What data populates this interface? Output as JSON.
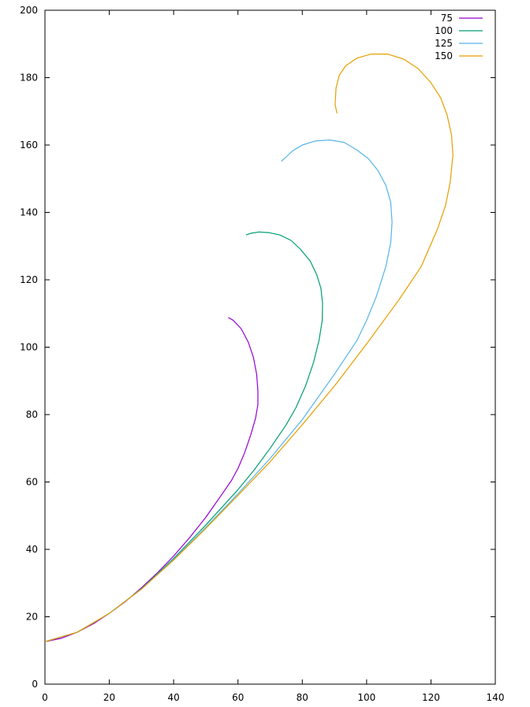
{
  "chart_data": {
    "type": "line",
    "title": "",
    "xlabel": "",
    "ylabel": "",
    "xlim": [
      0,
      140
    ],
    "ylim": [
      0,
      200
    ],
    "x_ticks": [
      0,
      20,
      40,
      60,
      80,
      100,
      120,
      140
    ],
    "y_ticks": [
      0,
      20,
      40,
      60,
      80,
      100,
      120,
      140,
      160,
      180,
      200
    ],
    "grid": false,
    "legend_position": "top-right",
    "series": [
      {
        "name": "75",
        "color": "#9400d3",
        "points": [
          [
            0,
            12.6
          ],
          [
            5,
            13.6
          ],
          [
            10,
            15.4
          ],
          [
            15,
            17.9
          ],
          [
            20,
            21.0
          ],
          [
            25,
            24.5
          ],
          [
            30,
            28.6
          ],
          [
            35,
            33.1
          ],
          [
            40,
            38.0
          ],
          [
            45,
            43.5
          ],
          [
            50,
            49.5
          ],
          [
            55,
            56.3
          ],
          [
            58,
            60.5
          ],
          [
            60,
            64.0
          ],
          [
            62,
            68.5
          ],
          [
            64,
            74.0
          ],
          [
            65.5,
            79.0
          ],
          [
            66.2,
            83.0
          ],
          [
            66.2,
            87.0
          ],
          [
            65.8,
            92.0
          ],
          [
            64.8,
            97.0
          ],
          [
            63.2,
            101.5
          ],
          [
            61.0,
            105.5
          ],
          [
            58.5,
            108.0
          ],
          [
            57.0,
            108.8
          ]
        ]
      },
      {
        "name": "100",
        "color": "#009e73",
        "points": [
          [
            0,
            12.6
          ],
          [
            10,
            15.4
          ],
          [
            20,
            21.0
          ],
          [
            30,
            28.3
          ],
          [
            40,
            37.3
          ],
          [
            50,
            47.2
          ],
          [
            60,
            57.7
          ],
          [
            65,
            63.5
          ],
          [
            70,
            70.0
          ],
          [
            75,
            77.0
          ],
          [
            78,
            82.0
          ],
          [
            81,
            88.5
          ],
          [
            83.5,
            95.5
          ],
          [
            85.2,
            102.0
          ],
          [
            86.2,
            108.0
          ],
          [
            86.3,
            113.0
          ],
          [
            85.8,
            117.5
          ],
          [
            84.5,
            121.5
          ],
          [
            82.5,
            125.5
          ],
          [
            79.5,
            129.0
          ],
          [
            76.5,
            131.7
          ],
          [
            73.0,
            133.3
          ],
          [
            69.5,
            134.0
          ],
          [
            66.5,
            134.2
          ],
          [
            64.0,
            133.8
          ],
          [
            62.5,
            133.3
          ]
        ]
      },
      {
        "name": "125",
        "color": "#56b4e9",
        "points": [
          [
            0,
            12.6
          ],
          [
            10,
            15.4
          ],
          [
            20,
            21.0
          ],
          [
            30,
            28.2
          ],
          [
            40,
            37.0
          ],
          [
            50,
            46.5
          ],
          [
            60,
            56.5
          ],
          [
            70,
            67.0
          ],
          [
            80,
            78.5
          ],
          [
            90,
            92.0
          ],
          [
            97,
            102.0
          ],
          [
            100,
            108.0
          ],
          [
            103,
            115.0
          ],
          [
            106,
            124.0
          ],
          [
            107.5,
            131.0
          ],
          [
            107.9,
            137.0
          ],
          [
            107.5,
            143.0
          ],
          [
            106.0,
            148.0
          ],
          [
            103.5,
            152.5
          ],
          [
            100.5,
            156.0
          ],
          [
            97.0,
            158.5
          ],
          [
            93.0,
            160.8
          ],
          [
            88.5,
            161.5
          ],
          [
            84.0,
            161.2
          ],
          [
            80.0,
            160.0
          ],
          [
            77.0,
            158.3
          ],
          [
            75.0,
            156.5
          ],
          [
            73.5,
            155.2
          ]
        ]
      },
      {
        "name": "150",
        "color": "#e69f00",
        "points": [
          [
            0,
            12.6
          ],
          [
            10,
            15.4
          ],
          [
            20,
            21.0
          ],
          [
            30,
            28.2
          ],
          [
            40,
            36.8
          ],
          [
            50,
            46.2
          ],
          [
            60,
            56.0
          ],
          [
            70,
            66.0
          ],
          [
            80,
            77.0
          ],
          [
            90,
            88.5
          ],
          [
            100,
            101.0
          ],
          [
            110,
            114.0
          ],
          [
            117,
            124.0
          ],
          [
            122,
            135.0
          ],
          [
            124.5,
            142.0
          ],
          [
            126.0,
            149.0
          ],
          [
            126.8,
            157.0
          ],
          [
            126.4,
            163.0
          ],
          [
            125.0,
            169.0
          ],
          [
            123.0,
            174.0
          ],
          [
            120.0,
            178.5
          ],
          [
            116.0,
            182.7
          ],
          [
            111.5,
            185.5
          ],
          [
            106.5,
            187.0
          ],
          [
            101.5,
            187.0
          ],
          [
            97.0,
            185.8
          ],
          [
            93.5,
            183.5
          ],
          [
            91.5,
            180.7
          ],
          [
            90.5,
            177.0
          ],
          [
            90.2,
            172.0
          ],
          [
            90.8,
            169.4
          ]
        ]
      }
    ]
  }
}
